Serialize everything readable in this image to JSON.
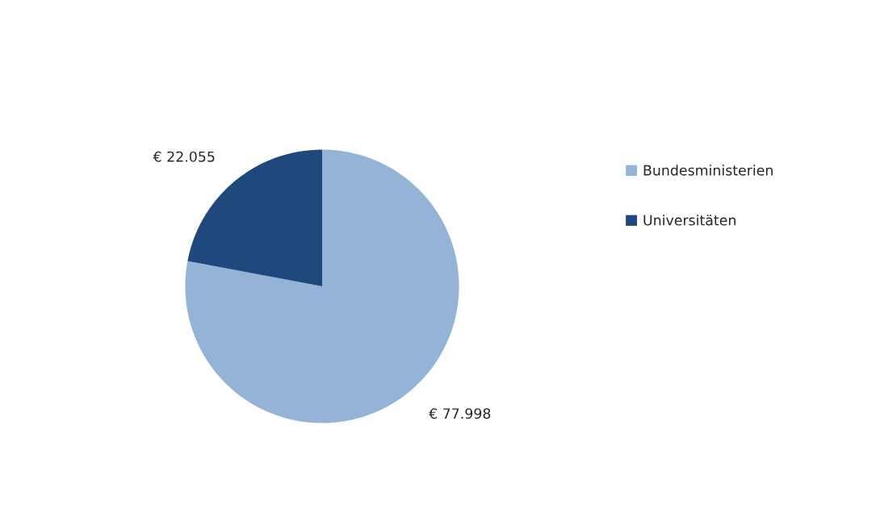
{
  "chart_data": {
    "type": "pie",
    "categories": [
      "Bundesministerien",
      "Universitäten"
    ],
    "values": [
      77998,
      22055
    ],
    "colors": [
      "#95b3d7",
      "#1f497d"
    ],
    "value_labels": [
      "€ 77.998",
      "€ 22.055"
    ],
    "legend": "right"
  }
}
